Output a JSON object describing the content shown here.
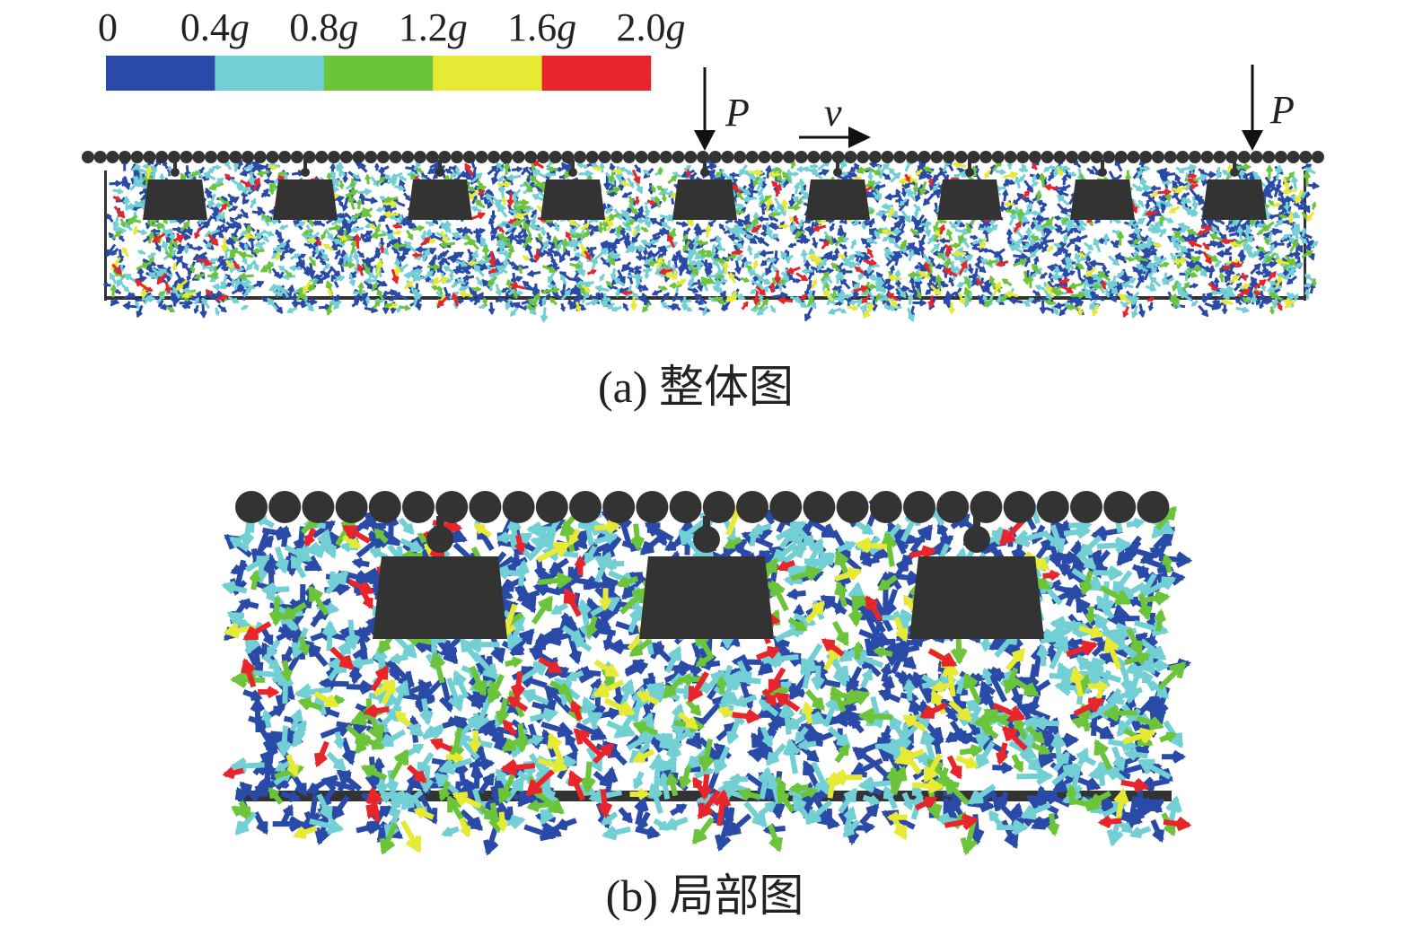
{
  "colorbar": {
    "labels": [
      {
        "text": "0"
      },
      {
        "text": "0.4",
        "unit": "g"
      },
      {
        "text": "0.8",
        "unit": "g"
      },
      {
        "text": "1.2",
        "unit": "g"
      },
      {
        "text": "1.6",
        "unit": "g"
      },
      {
        "text": "2.0",
        "unit": "g"
      }
    ],
    "colors": [
      "#2a4aa8",
      "#72cfd3",
      "#6cc43a",
      "#e6ea34",
      "#e8252b"
    ]
  },
  "annotations": {
    "load_left": "P",
    "load_right": "P",
    "velocity": "v"
  },
  "captions": {
    "a": "(a) 整体图",
    "b": "(b) 局部图"
  }
}
